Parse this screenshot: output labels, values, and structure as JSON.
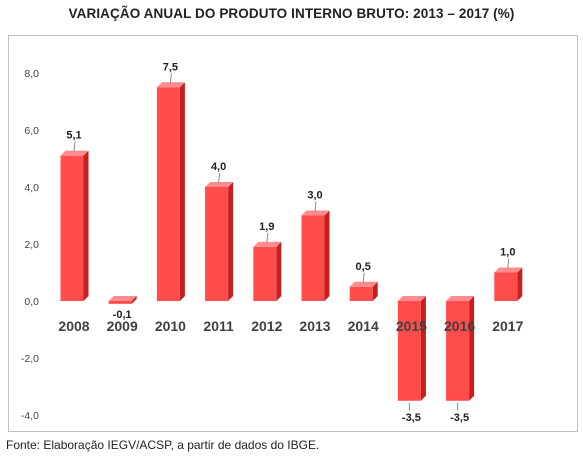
{
  "title": "VARIAÇÃO ANUAL DO PRODUTO INTERNO BRUTO: 2013 – 2017 (%)",
  "source": "Fonte: Elaboração IEGV/ACSP, a partir de dados do IBGE.",
  "chart_data": {
    "type": "bar",
    "title": "VARIAÇÃO ANUAL DO PRODUTO INTERNO BRUTO: 2013 – 2017 (%)",
    "categories": [
      "2008",
      "2009",
      "2010",
      "2011",
      "2012",
      "2013",
      "2014",
      "2015",
      "2016",
      "2017"
    ],
    "values": [
      5.1,
      -0.1,
      7.5,
      4.0,
      1.9,
      3.0,
      0.5,
      -3.5,
      -3.5,
      1.0
    ],
    "value_labels": [
      "5,1",
      "-0,1",
      "7,5",
      "4,0",
      "1,9",
      "3,0",
      "0,5",
      "-3,5",
      "-3,5",
      "1,0"
    ],
    "ylim": [
      -4.0,
      8.0
    ],
    "yticks": [
      -4.0,
      -2.0,
      0.0,
      2.0,
      4.0,
      6.0,
      8.0
    ],
    "ytick_labels": [
      "-4,0",
      "-2,0",
      "0,0",
      "2,0",
      "4,0",
      "6,0",
      "8,0"
    ],
    "grid": false,
    "legend": "none",
    "bar_color": "#ff4d4d",
    "bar_side_color": "#c81e1e",
    "bar_top_color": "#ff8c8c"
  }
}
